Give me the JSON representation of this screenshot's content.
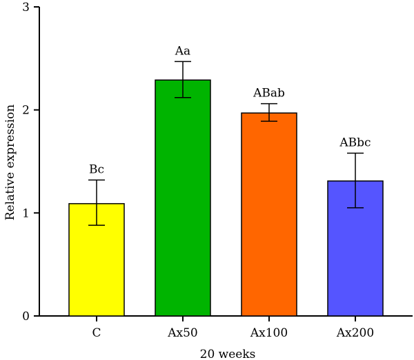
{
  "chart_data": {
    "type": "bar",
    "xlabel": "20 weeks",
    "ylabel": "Relative expression",
    "ylim": [
      0,
      3
    ],
    "yticks": [
      0,
      1,
      2,
      3
    ],
    "categories": [
      "C",
      "Ax50",
      "Ax100",
      "Ax200"
    ],
    "values": [
      1.09,
      2.29,
      1.97,
      1.31
    ],
    "error_low": [
      0.88,
      2.12,
      1.89,
      1.05
    ],
    "error_high": [
      1.32,
      2.47,
      2.06,
      1.58
    ],
    "significance_labels": [
      "Bc",
      "Aa",
      "ABab",
      "ABbc"
    ],
    "colors": [
      "#ffff00",
      "#00b400",
      "#ff6600",
      "#5555ff"
    ],
    "grid": false,
    "legend": "none"
  }
}
